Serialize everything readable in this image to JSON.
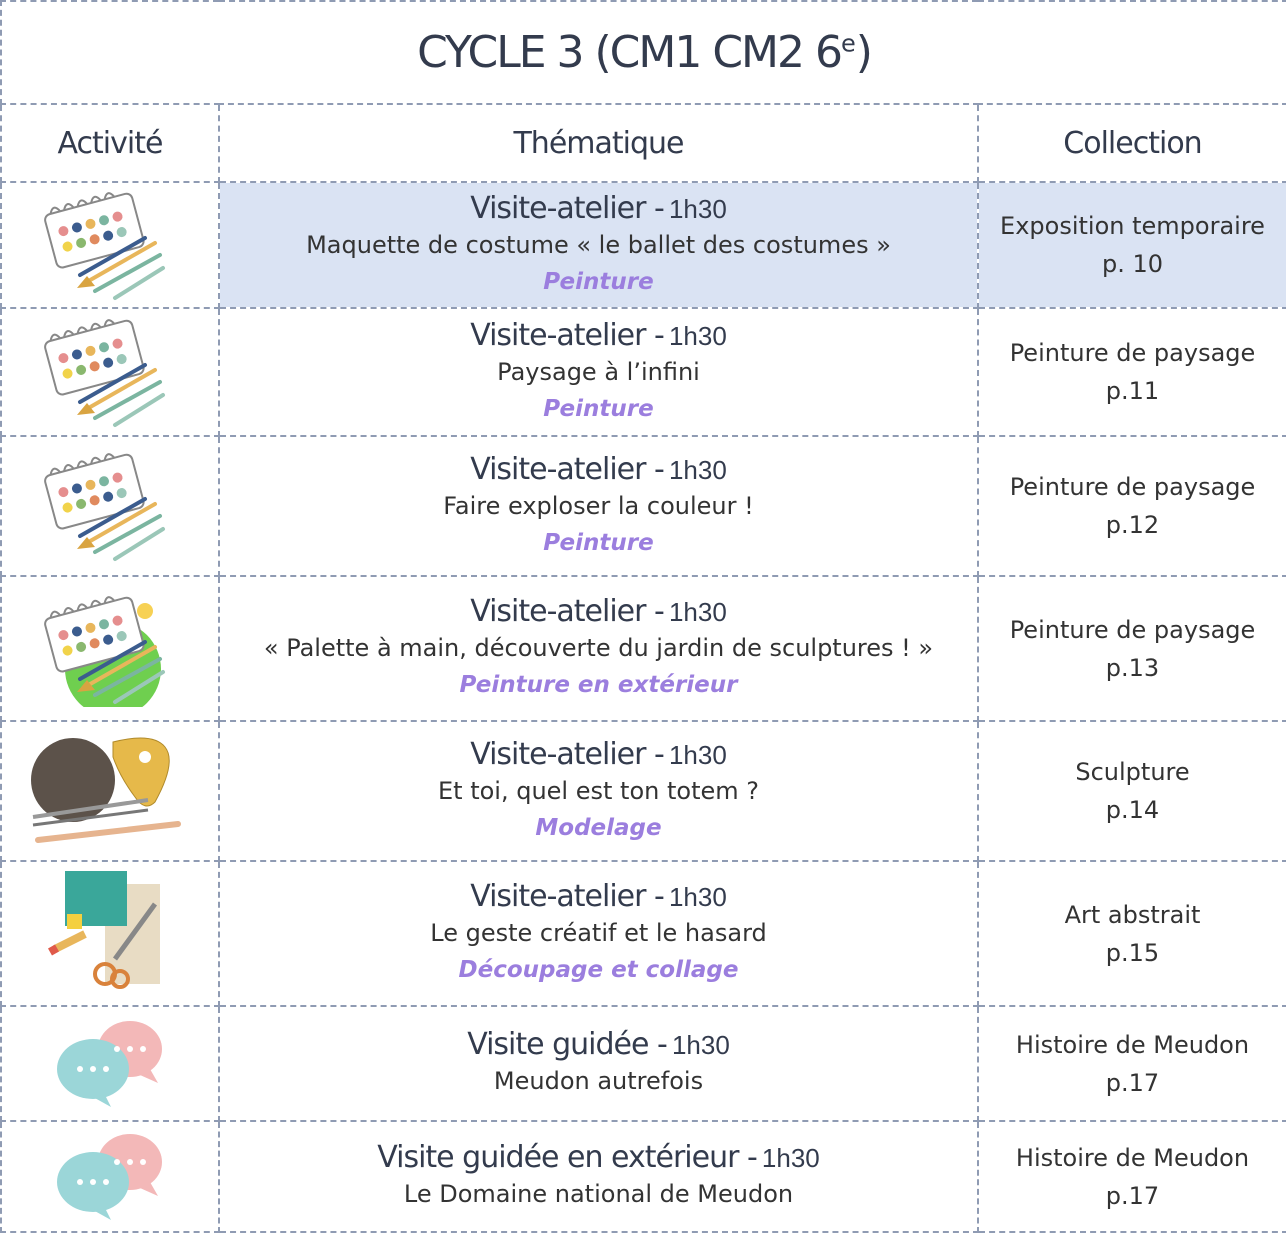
{
  "title": {
    "main": "CYCLE 3 (CM1 CM2 6",
    "sup": "e",
    "end": ")"
  },
  "header": {
    "activity": "Activité",
    "theme": "Thématique",
    "collection": "Collection"
  },
  "rows": [
    {
      "type": "Visite-atelier -",
      "duration": "1h30",
      "theme": "Maquette de costume « le ballet des costumes »",
      "technique": "Peinture",
      "collection": "Exposition temporaire",
      "page": "p. 10"
    },
    {
      "type": "Visite-atelier -",
      "duration": "1h30",
      "theme": "Paysage à l’infini",
      "technique": "Peinture",
      "collection": "Peinture de paysage",
      "page": "p.11"
    },
    {
      "type": "Visite-atelier -",
      "duration": "1h30",
      "theme": "Faire exploser la couleur !",
      "technique": "Peinture",
      "collection": "Peinture de paysage",
      "page": "p.12"
    },
    {
      "type": "Visite-atelier -",
      "duration": "1h30",
      "theme": "« Palette à main, découverte du jardin de sculptures ! »",
      "technique": "Peinture en extérieur",
      "collection": "Peinture de paysage",
      "page": "p.13"
    },
    {
      "type": "Visite-atelier -",
      "duration": "1h30",
      "theme": "Et toi, quel est ton totem ?",
      "technique": "Modelage",
      "collection": "Sculpture",
      "page": "p.14"
    },
    {
      "type": "Visite-atelier -",
      "duration": "1h30",
      "theme": "Le geste créatif et le hasard",
      "technique": "Découpage et collage",
      "collection": "Art abstrait",
      "page": "p.15"
    },
    {
      "type": "Visite guidée -",
      "duration": "1h30",
      "theme": "Meudon autrefois",
      "collection": "Histoire de Meudon",
      "page": "p.17"
    },
    {
      "type": "Visite guidée en extérieur -",
      "duration": "1h30",
      "theme": "Le Domaine national de Meudon",
      "collection": "Histoire de Meudon",
      "page": "p.17"
    }
  ]
}
